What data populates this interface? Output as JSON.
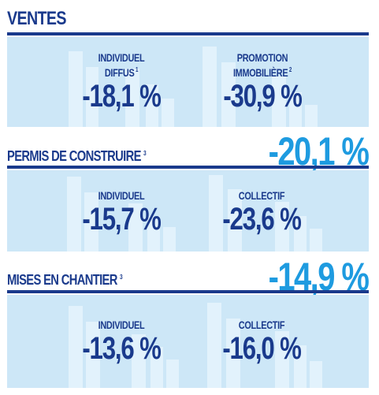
{
  "ventes": {
    "title": "VENTES",
    "left": {
      "label_line1": "INDIVIDUEL",
      "label_line2": "DIFFUS",
      "note": "1",
      "value": "-18,1 %"
    },
    "right": {
      "label_line1": "PROMOTION",
      "label_line2": "IMMOBILIÈRE",
      "note": "2",
      "value": "-30,9 %"
    }
  },
  "permis": {
    "title": "PERMIS DE CONSTRUIRE",
    "note": "3",
    "total": "-20,1 %",
    "left": {
      "label": "INDIVIDUEL",
      "value": "-15,7 %"
    },
    "right": {
      "label": "COLLECTIF",
      "value": "-23,6 %"
    }
  },
  "mises": {
    "title": "MISES EN CHANTIER",
    "note": "3",
    "total": "-14,9 %",
    "left": {
      "label": "INDIVIDUEL",
      "value": "-13,6 %"
    },
    "right": {
      "label": "COLLECTIF",
      "value": "-16,0 %"
    }
  },
  "colors": {
    "dark_blue": "#1a3a8c",
    "accent_blue": "#1e9be0",
    "panel_bg": "#cde7f7",
    "bar_bg": "#e2f2fc"
  }
}
